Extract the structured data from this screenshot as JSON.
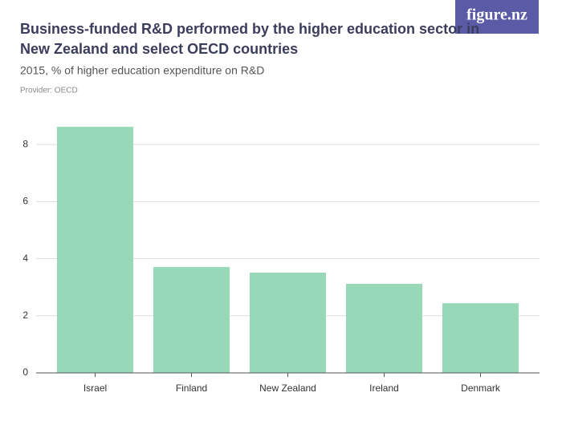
{
  "logo": "figure.nz",
  "chart_data": {
    "type": "bar",
    "title": "Business-funded R&D performed by the higher education sector in New Zealand and select OECD countries",
    "subtitle": "2015, % of higher education expenditure on R&D",
    "provider": "Provider: OECD",
    "categories": [
      "Israel",
      "Finland",
      "New Zealand",
      "Ireland",
      "Denmark"
    ],
    "values": [
      8.62,
      3.71,
      3.51,
      3.12,
      2.44
    ],
    "color": "#97d8b9",
    "ylim": [
      0,
      9
    ],
    "yticks": [
      0,
      2,
      4,
      6,
      8
    ],
    "grid": true
  }
}
